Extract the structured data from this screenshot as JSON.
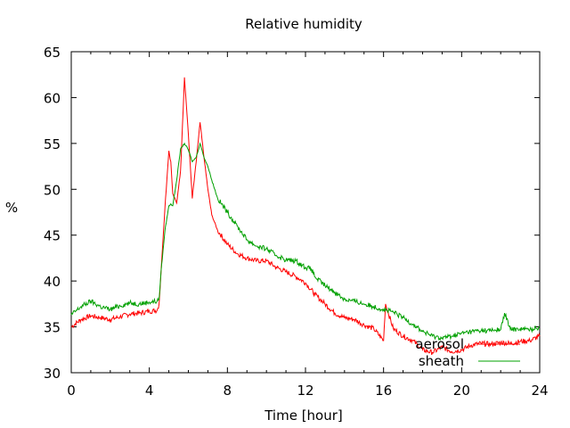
{
  "chart_data": {
    "type": "line",
    "title": "Relative humidity",
    "xlabel": "Time [hour]",
    "ylabel": "%",
    "xlim": [
      0,
      24
    ],
    "ylim": [
      30,
      65
    ],
    "x_ticks": [
      0,
      4,
      8,
      12,
      16,
      20,
      24
    ],
    "y_ticks": [
      30,
      35,
      40,
      45,
      50,
      55,
      60,
      65
    ],
    "grid": false,
    "legend_position": "bottom-right",
    "series": [
      {
        "name": "aerosol",
        "color": "#ff0000",
        "x": [
          0,
          0.5,
          1,
          1.5,
          2,
          2.5,
          3,
          3.5,
          4,
          4.4,
          4.5,
          4.6,
          4.8,
          5.0,
          5.1,
          5.2,
          5.4,
          5.6,
          5.8,
          6.0,
          6.2,
          6.4,
          6.6,
          6.8,
          7.0,
          7.2,
          7.5,
          8.0,
          8.5,
          9.0,
          9.5,
          10,
          10.5,
          11,
          11.5,
          12,
          12.5,
          13,
          13.5,
          14,
          14.5,
          15,
          15.5,
          16,
          16.1,
          16.5,
          17,
          17.5,
          18,
          18.5,
          19,
          19.5,
          20,
          20.5,
          21,
          21.5,
          22,
          22.5,
          23,
          23.5,
          24
        ],
        "values": [
          35,
          35.8,
          36.2,
          36,
          35.8,
          36.1,
          36.4,
          36.5,
          36.7,
          36.8,
          37.5,
          41,
          48,
          54.2,
          53,
          49.5,
          48.5,
          52,
          62.2,
          56,
          49,
          53,
          57.3,
          53.5,
          50,
          47.2,
          45.5,
          44,
          43,
          42.5,
          42.2,
          42.2,
          41.5,
          41,
          40.5,
          39.8,
          38.5,
          37.5,
          36.5,
          36,
          35.8,
          35.2,
          34.8,
          33.5,
          37.5,
          34.8,
          34,
          33.5,
          32.5,
          32.2,
          32.8,
          32.3,
          32.5,
          33,
          33.2,
          33.1,
          33.3,
          33.2,
          33.4,
          33.5,
          34
        ]
      },
      {
        "name": "sheath",
        "color": "#00a000",
        "x": [
          0,
          0.5,
          1,
          1.5,
          2,
          2.5,
          3,
          3.5,
          4,
          4.4,
          4.5,
          4.6,
          4.8,
          5.0,
          5.1,
          5.2,
          5.4,
          5.6,
          5.8,
          6.0,
          6.2,
          6.4,
          6.6,
          6.8,
          7.0,
          7.2,
          7.5,
          8.0,
          8.5,
          9.0,
          9.5,
          10,
          10.5,
          11,
          11.5,
          12,
          12.3,
          12.5,
          13,
          13.5,
          14,
          14.5,
          15,
          15.5,
          16,
          16.5,
          17,
          17.5,
          18,
          18.5,
          19,
          19.5,
          20,
          20.5,
          21,
          21.5,
          22,
          22.2,
          22.5,
          23,
          23.5,
          24
        ],
        "values": [
          36.3,
          37.2,
          37.8,
          37.2,
          36.9,
          37.3,
          37.6,
          37.5,
          37.7,
          37.8,
          38,
          41,
          45.5,
          48.2,
          48.4,
          48.2,
          51,
          54.4,
          55,
          54.3,
          53,
          53.5,
          55,
          53.5,
          52.5,
          51,
          49,
          47.5,
          46,
          44.5,
          43.8,
          43.5,
          42.8,
          42.3,
          42.2,
          41.5,
          41.3,
          40.4,
          39.5,
          38.8,
          38,
          37.8,
          37.5,
          37.2,
          36.9,
          36.6,
          36,
          35.3,
          34.5,
          34,
          33.8,
          34,
          34.3,
          34.5,
          34.6,
          34.6,
          34.7,
          36.5,
          34.7,
          34.8,
          34.7,
          35
        ]
      }
    ]
  }
}
